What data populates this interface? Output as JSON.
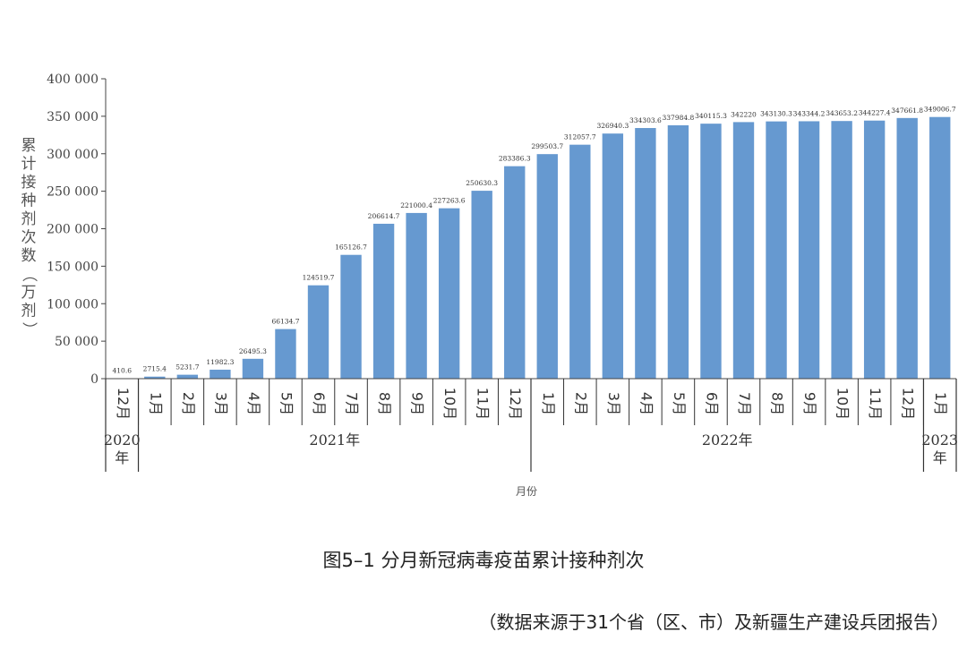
{
  "chart_data": {
    "type": "bar",
    "categories": [
      "12月",
      "1月",
      "2月",
      "3月",
      "4月",
      "5月",
      "6月",
      "7月",
      "8月",
      "9月",
      "10月",
      "11月",
      "12月",
      "1月",
      "2月",
      "3月",
      "4月",
      "5月",
      "6月",
      "7月",
      "8月",
      "9月",
      "10月",
      "11月",
      "12月",
      "1月"
    ],
    "values": [
      410.6,
      2715.4,
      5231.7,
      11982.3,
      26495.3,
      66134.7,
      124519.7,
      165126.7,
      206614.7,
      221000.4,
      227263.6,
      250630.3,
      283386.3,
      299503.7,
      312057.7,
      326940.3,
      334303.6,
      337984.8,
      340115.3,
      342220,
      343130.3,
      343344.2,
      343653.2,
      344227.4,
      347661.8,
      349006.7
    ],
    "value_labels": [
      "410.6",
      "2715.4",
      "5231.7",
      "11982.3",
      "26495.3",
      "66134.7",
      "124519.7",
      "165126.7",
      "206614.7",
      "221000.4",
      "227263.6",
      "250630.3",
      "283386.3",
      "299503.7",
      "312057.7",
      "326940.3",
      "334303.6",
      "337984.8",
      "340115.3",
      "342220",
      "343130.3",
      "343344.2",
      "343653.2",
      "344227.4",
      "347661.8",
      "349006.7"
    ],
    "year_groups": [
      {
        "label": "2020\n年",
        "start": 0,
        "end": 0
      },
      {
        "label": "2021年",
        "start": 1,
        "end": 12
      },
      {
        "label": "2022年",
        "start": 13,
        "end": 24
      },
      {
        "label": "2023\n年",
        "start": 25,
        "end": 25
      }
    ],
    "ylim": [
      0,
      400000
    ],
    "yticks": [
      0,
      50000,
      100000,
      150000,
      200000,
      250000,
      300000,
      350000,
      400000
    ],
    "ytick_labels": [
      "0",
      "50 000",
      "100 000",
      "150 000",
      "200 000",
      "250 000",
      "300 000",
      "350 000",
      "400 000"
    ],
    "ylabel": "累计接种剂次数（万剂）",
    "xlabel": "月份",
    "bar_color": "#6699d0",
    "grid": false
  },
  "caption": "图5–1 分月新冠病毒疫苗累计接种剂次",
  "source": "（数据来源于31个省（区、市）及新疆生产建设兵团报告）"
}
